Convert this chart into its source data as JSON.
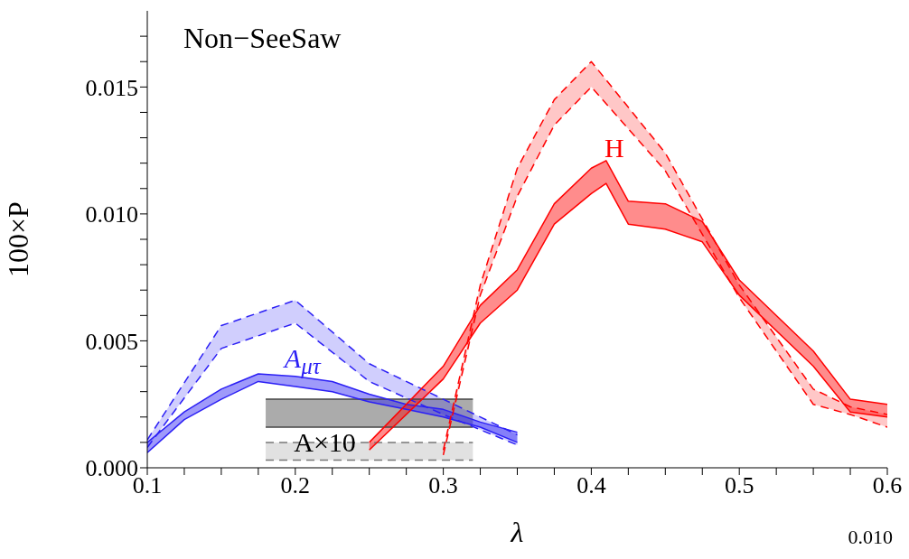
{
  "chart_data": {
    "type": "line",
    "xlabel": "λ",
    "ylabel": "100×P",
    "xlim": [
      0.1,
      0.6
    ],
    "ylim": [
      0,
      0.018
    ],
    "xticks": [
      0.1,
      {
        "value": 0.125,
        "label": null
      },
      {
        "value": 0.15,
        "label": null
      },
      {
        "value": 0.175,
        "label": null
      },
      0.2,
      {
        "value": 0.225,
        "label": null
      },
      {
        "value": 0.25,
        "label": null
      },
      {
        "value": 0.275,
        "label": null
      },
      0.3,
      {
        "value": 0.325,
        "label": null
      },
      {
        "value": 0.35,
        "label": null
      },
      {
        "value": 0.375,
        "label": null
      },
      0.4,
      {
        "value": 0.425,
        "label": null
      },
      {
        "value": 0.45,
        "label": null
      },
      {
        "value": 0.475,
        "label": null
      },
      0.5,
      {
        "value": 0.525,
        "label": null
      },
      {
        "value": 0.55,
        "label": null
      },
      {
        "value": 0.575,
        "label": null
      },
      0.6
    ],
    "yticks": [
      {
        "value": 0,
        "label": "0.000"
      },
      {
        "value": 0.001,
        "label": null
      },
      {
        "value": 0.002,
        "label": null
      },
      {
        "value": 0.003,
        "label": null
      },
      {
        "value": 0.004,
        "label": null
      },
      0.005,
      {
        "value": 0.006,
        "label": null
      },
      {
        "value": 0.007,
        "label": null
      },
      {
        "value": 0.008,
        "label": null
      },
      {
        "value": 0.009,
        "label": null
      },
      {
        "value": 0.01,
        "label": "0.010"
      },
      {
        "value": 0.011,
        "label": null
      },
      {
        "value": 0.012,
        "label": null
      },
      {
        "value": 0.013,
        "label": null
      },
      {
        "value": 0.014,
        "label": null
      },
      0.015,
      {
        "value": 0.016,
        "label": null
      },
      {
        "value": 0.017,
        "label": null
      }
    ],
    "series": [
      {
        "color": "#777777",
        "line_style": "dashed",
        "x": [
          0.18,
          0.32
        ],
        "values": [
          0.001,
          0.001
        ],
        "lower": [
          0.0003,
          0.0003
        ],
        "upper": [
          0.001,
          0.001
        ]
      },
      {
        "color": "#777777",
        "line_style": "dashed",
        "x": [
          0.18,
          0.32
        ],
        "values": [
          0.0003,
          0.0003
        ]
      },
      {
        "color": "#444444",
        "line_style": "solid",
        "x": [
          0.18,
          0.32
        ],
        "values": [
          0.0027,
          0.0027
        ],
        "lower": [
          0.0016,
          0.0016
        ],
        "upper": [
          0.0027,
          0.0027
        ]
      },
      {
        "color": "#444444",
        "line_style": "solid",
        "x": [
          0.18,
          0.32
        ],
        "values": [
          0.0016,
          0.0016
        ]
      },
      {
        "color": "#2b1ff5",
        "line_style": "dashed",
        "x": [
          0.1,
          0.15,
          0.2,
          0.25,
          0.3,
          0.35
        ],
        "values": [
          0.0011,
          0.0056,
          0.0066,
          0.0041,
          0.0027,
          0.0013
        ],
        "lower": [
          0.0008,
          0.0047,
          0.0057,
          0.0034,
          0.0021,
          0.0009
        ],
        "upper": [
          0.0011,
          0.0056,
          0.0066,
          0.0041,
          0.0027,
          0.0013
        ]
      },
      {
        "color": "#2b1ff5",
        "line_style": "dashed",
        "x": [
          0.1,
          0.15,
          0.2,
          0.25,
          0.3,
          0.35
        ],
        "values": [
          0.0008,
          0.0047,
          0.0057,
          0.0034,
          0.0021,
          0.0009
        ]
      },
      {
        "color": "#2b1ff5",
        "line_style": "solid",
        "x": [
          0.1,
          0.125,
          0.15,
          0.175,
          0.2,
          0.225,
          0.25,
          0.275,
          0.3,
          0.325,
          0.35
        ],
        "values": [
          0.001,
          0.0022,
          0.0031,
          0.0037,
          0.0036,
          0.0034,
          0.0029,
          0.0025,
          0.0023,
          0.0018,
          0.0014
        ],
        "lower": [
          0.0006,
          0.0019,
          0.0027,
          0.0034,
          0.0032,
          0.003,
          0.0026,
          0.0023,
          0.002,
          0.0016,
          0.001
        ],
        "upper": [
          0.001,
          0.0022,
          0.0031,
          0.0037,
          0.0036,
          0.0034,
          0.0029,
          0.0025,
          0.0023,
          0.0018,
          0.0014
        ]
      },
      {
        "color": "#2b1ff5",
        "line_style": "solid",
        "x": [
          0.1,
          0.125,
          0.15,
          0.175,
          0.2,
          0.225,
          0.25,
          0.275,
          0.3,
          0.325,
          0.35
        ],
        "values": [
          0.0006,
          0.0019,
          0.0027,
          0.0034,
          0.0032,
          0.003,
          0.0026,
          0.0023,
          0.002,
          0.0016,
          0.001
        ]
      },
      {
        "color": "#ff0000",
        "line_style": "dashed",
        "x": [
          0.3,
          0.325,
          0.35,
          0.375,
          0.4,
          0.45,
          0.5,
          0.55,
          0.575,
          0.6
        ],
        "values": [
          0.0007,
          0.0072,
          0.0118,
          0.0145,
          0.016,
          0.0124,
          0.0072,
          0.0031,
          0.0024,
          0.0021
        ],
        "lower": [
          0.0005,
          0.0068,
          0.0107,
          0.0135,
          0.015,
          0.0117,
          0.0067,
          0.0025,
          0.0021,
          0.0016
        ],
        "upper": [
          0.0007,
          0.0072,
          0.0118,
          0.0145,
          0.016,
          0.0124,
          0.0072,
          0.0031,
          0.0024,
          0.0021
        ]
      },
      {
        "color": "#ff0000",
        "line_style": "dashed",
        "x": [
          0.3,
          0.325,
          0.35,
          0.375,
          0.4,
          0.45,
          0.5,
          0.55,
          0.575,
          0.6
        ],
        "values": [
          0.0005,
          0.0068,
          0.0107,
          0.0135,
          0.015,
          0.0117,
          0.0067,
          0.0025,
          0.0021,
          0.0016
        ]
      },
      {
        "color": "#ff0000",
        "line_style": "solid",
        "x": [
          0.25,
          0.3,
          0.325,
          0.35,
          0.375,
          0.4,
          0.41,
          0.425,
          0.45,
          0.475,
          0.5,
          0.55,
          0.575,
          0.6
        ],
        "values": [
          0.001,
          0.004,
          0.0064,
          0.0078,
          0.0104,
          0.0118,
          0.0121,
          0.0105,
          0.0104,
          0.0097,
          0.0074,
          0.0046,
          0.0027,
          0.0025
        ],
        "lower": [
          0.0007,
          0.0035,
          0.0057,
          0.007,
          0.0096,
          0.0108,
          0.0112,
          0.0096,
          0.0094,
          0.0089,
          0.0068,
          0.004,
          0.0022,
          0.002
        ],
        "upper": [
          0.001,
          0.004,
          0.0064,
          0.0078,
          0.0104,
          0.0118,
          0.0121,
          0.0105,
          0.0104,
          0.0097,
          0.0074,
          0.0046,
          0.0027,
          0.0025
        ]
      },
      {
        "color": "#ff0000",
        "line_style": "solid",
        "x": [
          0.25,
          0.3,
          0.325,
          0.35,
          0.375,
          0.4,
          0.41,
          0.425,
          0.45,
          0.475,
          0.5,
          0.55,
          0.575,
          0.6
        ],
        "values": [
          0.0007,
          0.0035,
          0.0057,
          0.007,
          0.0096,
          0.0108,
          0.0112,
          0.0096,
          0.0094,
          0.0089,
          0.0068,
          0.004,
          0.0022,
          0.002
        ]
      }
    ],
    "annotations": [
      "Non−SeeSaw",
      "H",
      "A$_{μτ}$",
      {
        "text": "A×10",
        "x": 0.22,
        "y": 0.0016
      },
      "0.010"
    ]
  }
}
